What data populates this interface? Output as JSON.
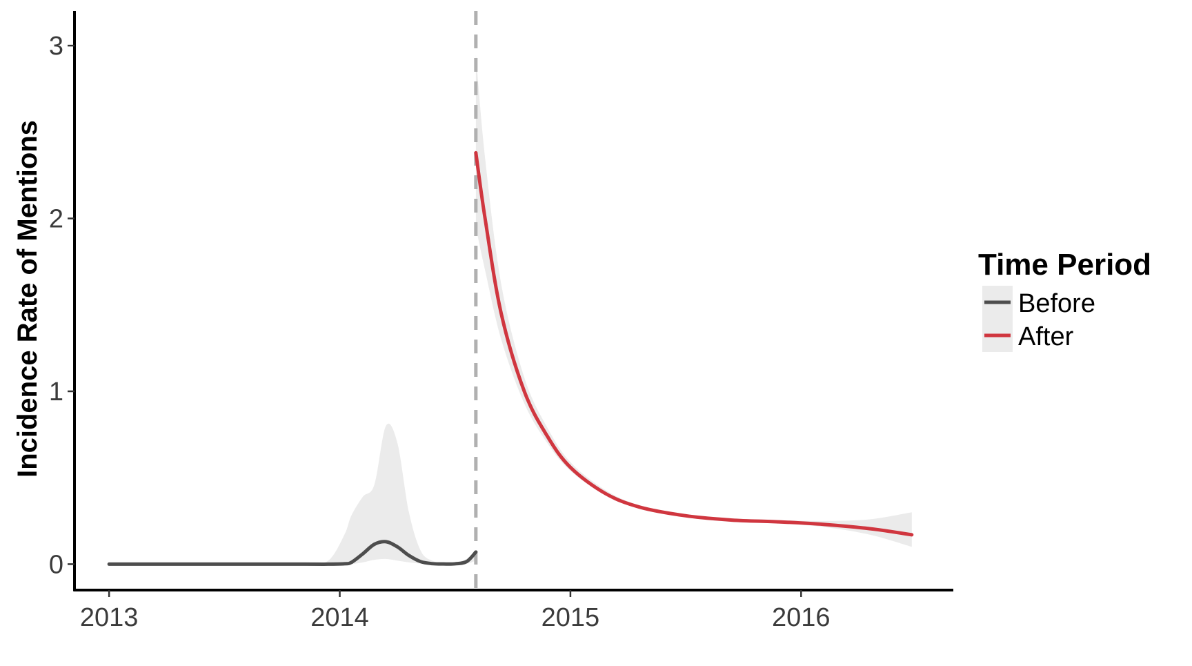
{
  "chart_data": {
    "type": "line",
    "title": "",
    "xlabel": "",
    "ylabel": "Incidence Rate of Mentions",
    "xlim": [
      2012.85,
      2016.66
    ],
    "ylim": [
      -0.15,
      3.2
    ],
    "x_ticks": [
      2013,
      2014,
      2015,
      2016
    ],
    "x_tick_labels": [
      "2013",
      "2014",
      "2015",
      "2016"
    ],
    "y_ticks": [
      0,
      1,
      2,
      3
    ],
    "y_tick_labels": [
      "0",
      "1",
      "2",
      "3"
    ],
    "grid": false,
    "legend": {
      "title": "Time Period",
      "placement": "right",
      "entries": [
        "Before",
        "After"
      ]
    },
    "event_line": {
      "x": 2014.59,
      "style": "dashed",
      "color": "#b0b0b0"
    },
    "series": [
      {
        "name": "Before",
        "color": "#4d4d4d",
        "x": [
          2013.0,
          2013.3,
          2013.6,
          2013.85,
          2013.95,
          2014.02,
          2014.05,
          2014.1,
          2014.15,
          2014.2,
          2014.25,
          2014.3,
          2014.35,
          2014.4,
          2014.45,
          2014.5,
          2014.55,
          2014.59
        ],
        "y": [
          0,
          0,
          0,
          0,
          0,
          0.002,
          0.01,
          0.06,
          0.115,
          0.13,
          0.1,
          0.05,
          0.015,
          0.003,
          0.001,
          0.002,
          0.015,
          0.07
        ],
        "lower": [
          0,
          0,
          0,
          0,
          0,
          0,
          0,
          0.01,
          0.025,
          0.03,
          0.02,
          0.01,
          0.003,
          0.001,
          0,
          0,
          0.002,
          0.02
        ],
        "upper": [
          0,
          0,
          0,
          0,
          0.02,
          0.17,
          0.28,
          0.39,
          0.46,
          0.8,
          0.7,
          0.3,
          0.08,
          0.02,
          0.01,
          0.01,
          0.03,
          0.08
        ]
      },
      {
        "name": "After",
        "color": "#d0363f",
        "x": [
          2014.59,
          2014.63,
          2014.7,
          2014.8,
          2014.9,
          2015.0,
          2015.15,
          2015.3,
          2015.5,
          2015.7,
          2015.9,
          2016.1,
          2016.3,
          2016.48
        ],
        "y": [
          2.38,
          2.0,
          1.45,
          1.0,
          0.74,
          0.56,
          0.41,
          0.33,
          0.28,
          0.255,
          0.245,
          0.23,
          0.205,
          0.17
        ],
        "lower": [
          1.95,
          1.7,
          1.3,
          0.93,
          0.7,
          0.54,
          0.4,
          0.32,
          0.27,
          0.245,
          0.235,
          0.215,
          0.17,
          0.1
        ],
        "upper": [
          2.95,
          2.35,
          1.62,
          1.08,
          0.79,
          0.59,
          0.43,
          0.34,
          0.29,
          0.265,
          0.255,
          0.25,
          0.26,
          0.3
        ]
      }
    ],
    "ribbon_color": "#ebebeb"
  }
}
